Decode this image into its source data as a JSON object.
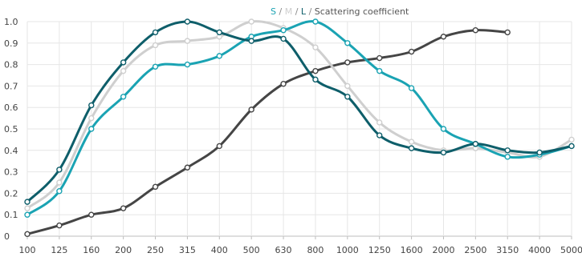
{
  "legend": {
    "s_label": "S",
    "m_label": "M",
    "l_label": "L",
    "separator": "/",
    "title": "Scattering coefficient"
  },
  "chart_data": {
    "type": "line",
    "title": "Scattering coefficient",
    "xlabel": "",
    "ylabel": "",
    "x": [
      "100",
      "125",
      "160",
      "200",
      "250",
      "315",
      "400",
      "500",
      "630",
      "800",
      "1000",
      "1250",
      "1600",
      "2000",
      "2500",
      "3150",
      "4000",
      "5000"
    ],
    "ylim": [
      0,
      1.0
    ],
    "yticks": [
      0,
      0.1,
      0.2,
      0.3,
      0.4,
      0.5,
      0.6,
      0.7,
      0.8,
      0.9,
      1.0
    ],
    "ytick_labels": [
      "0",
      "0.1",
      "0.2",
      "0.3",
      "0.4",
      "0.5",
      "0.6",
      "0.7",
      "0.8",
      "0.9",
      "1.0"
    ],
    "grid": true,
    "legend_position": "top-center",
    "series": [
      {
        "name": "S",
        "color": "#1aa3b3",
        "values": [
          0.1,
          0.21,
          0.5,
          0.65,
          0.79,
          0.8,
          0.84,
          0.93,
          0.96,
          1.0,
          0.9,
          0.77,
          0.69,
          0.5,
          0.43,
          0.37,
          0.38,
          0.42
        ]
      },
      {
        "name": "M",
        "color": "#cfcfcf",
        "values": [
          0.13,
          0.25,
          0.55,
          0.77,
          0.89,
          0.91,
          0.93,
          1.0,
          0.97,
          0.88,
          0.7,
          0.53,
          0.44,
          0.4,
          0.41,
          0.39,
          0.37,
          0.45
        ]
      },
      {
        "name": "L",
        "color": "#0e5e6a",
        "values": [
          0.16,
          0.31,
          0.61,
          0.81,
          0.95,
          1.0,
          0.95,
          0.91,
          0.92,
          0.73,
          0.65,
          0.47,
          0.41,
          0.39,
          0.43,
          0.4,
          0.39,
          0.42
        ]
      },
      {
        "name": "",
        "color": "#454545",
        "values": [
          0.01,
          0.05,
          0.1,
          0.13,
          0.23,
          0.32,
          0.42,
          0.59,
          0.71,
          0.77,
          0.81,
          0.83,
          0.86,
          0.93,
          0.96,
          0.95,
          null,
          null
        ]
      }
    ]
  }
}
